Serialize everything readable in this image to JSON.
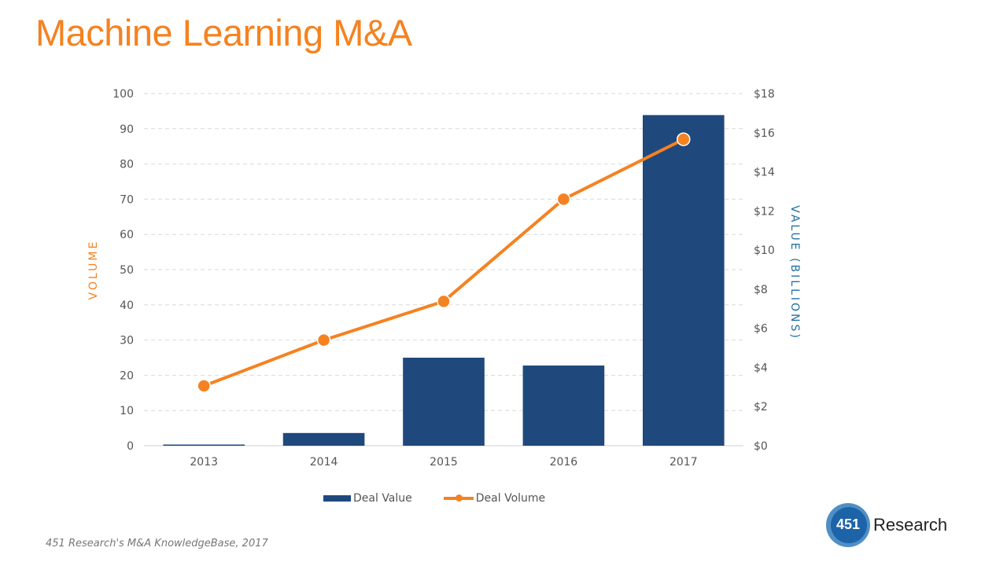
{
  "page": {
    "title": "Machine Learning M&A",
    "source": "451 Research's M&A KnowledgeBase, 2017",
    "logo": {
      "number": "451",
      "text": "Research"
    }
  },
  "colors": {
    "accent": "#f58220",
    "bar": "#1f497d",
    "right_axis_title": "#1f6f9f"
  },
  "chart_data": {
    "type": "bar",
    "title": "Machine Learning M&A",
    "categories": [
      "2013",
      "2014",
      "2015",
      "2016",
      "2017"
    ],
    "series": [
      {
        "name": "Deal Value",
        "type": "bar",
        "axis": "right",
        "unit": "USD billions",
        "values": [
          0.05,
          0.65,
          4.5,
          4.1,
          16.9
        ]
      },
      {
        "name": "Deal Volume",
        "type": "line",
        "axis": "left",
        "values": [
          17,
          30,
          41,
          70,
          87
        ]
      }
    ],
    "left_axis": {
      "label": "VOLUME",
      "range": [
        0,
        100
      ],
      "ticks": [
        "0",
        "10",
        "20",
        "30",
        "40",
        "50",
        "60",
        "70",
        "80",
        "90",
        "100"
      ]
    },
    "right_axis": {
      "label": "VALUE (BILLIONS)",
      "range": [
        0,
        18
      ],
      "ticks": [
        "$0",
        "$2",
        "$4",
        "$6",
        "$8",
        "$10",
        "$12",
        "$14",
        "$16",
        "$18"
      ]
    },
    "grid": true,
    "legend": {
      "position": "bottom",
      "entries": [
        "Deal Value",
        "Deal Volume"
      ]
    }
  }
}
